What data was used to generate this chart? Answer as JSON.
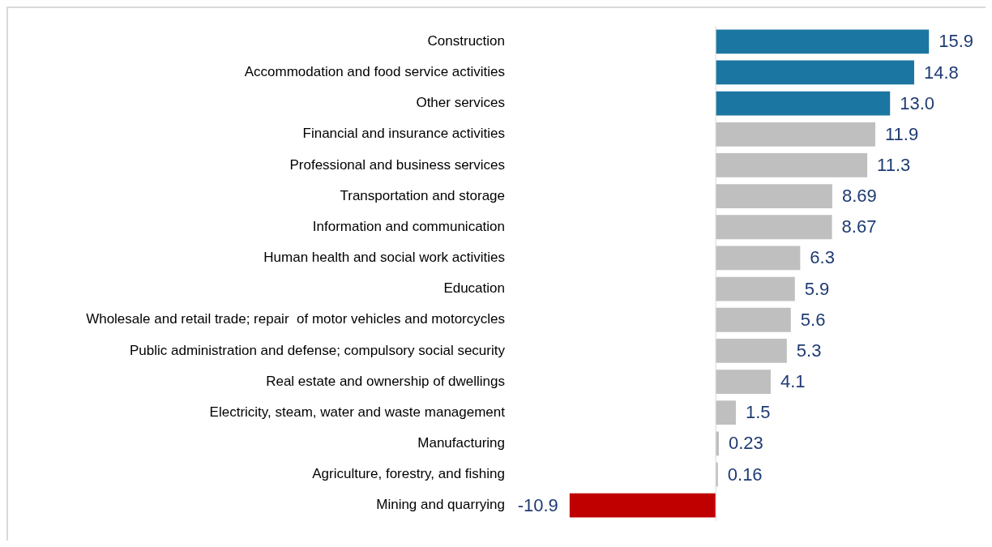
{
  "chart_data": {
    "type": "bar",
    "orientation": "horizontal",
    "categories": [
      "Construction",
      "Accommodation and food service activities",
      "Other services",
      "Financial and insurance activities",
      "Professional and business services",
      "Transportation and storage",
      "Information and communication",
      "Human health and social work activities",
      "Education",
      "Wholesale and retail trade; repair  of motor vehicles and motorcycles",
      "Public administration and defense; compulsory social security",
      "Real estate and ownership of dwellings",
      "Electricity, steam, water and waste management",
      "Manufacturing",
      "Agriculture, forestry, and fishing",
      "Mining and quarrying"
    ],
    "values": [
      15.9,
      14.8,
      13.0,
      11.9,
      11.3,
      8.69,
      8.67,
      6.3,
      5.9,
      5.6,
      5.3,
      4.1,
      1.5,
      0.23,
      0.16,
      -10.9
    ],
    "colors": [
      "#1c76a2",
      "#1c76a2",
      "#1c76a2",
      "#bfbfbf",
      "#bfbfbf",
      "#bfbfbf",
      "#bfbfbf",
      "#bfbfbf",
      "#bfbfbf",
      "#bfbfbf",
      "#bfbfbf",
      "#bfbfbf",
      "#bfbfbf",
      "#bfbfbf",
      "#bfbfbf",
      "#c00000"
    ],
    "value_labels": [
      "15.9",
      "14.8",
      "13.0",
      "11.9",
      "11.3",
      "8.69",
      "8.67",
      "6.3",
      "5.9",
      "5.6",
      "5.3",
      "4.1",
      "1.5",
      "0.23",
      "0.16",
      "-10.9"
    ],
    "legend": false
  }
}
